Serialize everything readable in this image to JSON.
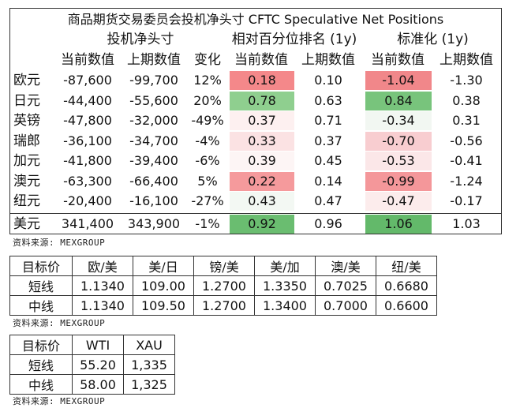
{
  "cftc": {
    "title": "商品期货交易委员会投机净头寸 CFTC Speculative Net Positions",
    "groups": {
      "net": "投机净头寸",
      "pct": "相对百分位排名 (1y)",
      "std": "标准化 (1y)"
    },
    "columns": {
      "cur": "当前数值",
      "prev": "上期数值",
      "change": "变化"
    },
    "rows": [
      {
        "name": "欧元",
        "cur": "-87,600",
        "prev": "-99,700",
        "change": "12%",
        "pct_cur": "0.18",
        "pct_prev": "0.10",
        "std_cur": "-1.04",
        "std_prev": "-1.30",
        "pct_color": "#f4888a",
        "std_color": "#f1878a"
      },
      {
        "name": "日元",
        "cur": "-44,400",
        "prev": "-55,600",
        "change": "20%",
        "pct_cur": "0.78",
        "pct_prev": "0.63",
        "std_cur": "0.84",
        "std_prev": "0.38",
        "pct_color": "#8fcf8f",
        "std_color": "#78c47c"
      },
      {
        "name": "英镑",
        "cur": "-47,800",
        "prev": "-32,000",
        "change": "-49%",
        "pct_cur": "0.37",
        "pct_prev": "0.71",
        "std_cur": "-0.34",
        "std_prev": "0.31",
        "pct_color": "#fdf0f0",
        "std_color": "#f2f7f2"
      },
      {
        "name": "瑞郎",
        "cur": "-36,100",
        "prev": "-34,700",
        "change": "-4%",
        "pct_cur": "0.33",
        "pct_prev": "0.37",
        "std_cur": "-0.70",
        "std_prev": "-0.56",
        "pct_color": "#fbe2e3",
        "std_color": "#f8cdd0"
      },
      {
        "name": "加元",
        "cur": "-41,800",
        "prev": "-39,400",
        "change": "-6%",
        "pct_cur": "0.39",
        "pct_prev": "0.45",
        "std_cur": "-0.53",
        "std_prev": "-0.41",
        "pct_color": "#fdf5f5",
        "std_color": "#fbe7e8"
      },
      {
        "name": "澳元",
        "cur": "-63,300",
        "prev": "-66,400",
        "change": "5%",
        "pct_cur": "0.22",
        "pct_prev": "0.14",
        "std_cur": "-0.99",
        "std_prev": "-1.24",
        "pct_color": "#f59a9c",
        "std_color": "#f4979a"
      },
      {
        "name": "纽元",
        "cur": "-20,400",
        "prev": "-16,100",
        "change": "-27%",
        "pct_cur": "0.43",
        "pct_prev": "0.47",
        "std_cur": "-0.47",
        "std_prev": "-0.17",
        "pct_color": "#f3f8f3",
        "std_color": "#fcecec"
      },
      {
        "name": "美元",
        "cur": "341,400",
        "prev": "343,900",
        "change": "-1%",
        "pct_cur": "0.92",
        "pct_prev": "0.96",
        "std_cur": "1.06",
        "std_prev": "1.03",
        "pct_color": "#6abd70",
        "std_color": "#63b96a"
      }
    ],
    "source": "资料来源: MEXGROUP"
  },
  "fx_targets": {
    "header": [
      "目标价",
      "欧/美",
      "美/日",
      "镑/美",
      "美/加",
      "澳/美",
      "纽/美"
    ],
    "rows": [
      [
        "短线",
        "1.1340",
        "109.00",
        "1.2700",
        "1.3350",
        "0.7025",
        "0.6680"
      ],
      [
        "中线",
        "1.1340",
        "109.50",
        "1.2700",
        "1.3400",
        "0.7000",
        "0.6600"
      ]
    ],
    "source": "资料来源: MEXGROUP"
  },
  "commodity_targets": {
    "header": [
      "目标价",
      "WTI",
      "XAU"
    ],
    "rows": [
      [
        "短线",
        "55.20",
        "1,335"
      ],
      [
        "中线",
        "58.00",
        "1,325"
      ]
    ],
    "source": "资料来源: MEXGROUP"
  }
}
